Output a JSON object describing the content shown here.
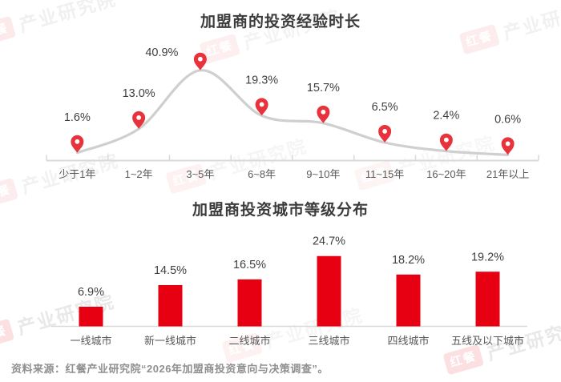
{
  "watermark": {
    "logo": "红餐",
    "name": "产业研究院"
  },
  "chart_data": [
    {
      "type": "line",
      "title": "加盟商的投资经验时长",
      "categories": [
        "少于1年",
        "1~2年",
        "3~5年",
        "6~8年",
        "9~10年",
        "11~15年",
        "16~20年",
        "21年以上"
      ],
      "values": [
        1.6,
        13.0,
        40.9,
        19.3,
        15.7,
        6.5,
        2.4,
        0.6
      ],
      "value_labels": [
        "1.6%",
        "13.0%",
        "40.9%",
        "19.3%",
        "15.7%",
        "6.5%",
        "2.4%",
        "0.6%"
      ],
      "unit": "%",
      "ylim": [
        0,
        45
      ],
      "grid": false,
      "legend": null,
      "marker": "map-pin",
      "colors": {
        "line": "#cfcfcf",
        "marker": "#e8333d",
        "marker_hole": "#ffffff",
        "axis": "#d9d9d9",
        "value_label": "#3f3f3f",
        "category_label": "#595959"
      }
    },
    {
      "type": "bar",
      "title": "加盟商投资城市等级分布",
      "categories": [
        "一线城市",
        "新一线城市",
        "二线城市",
        "三线城市",
        "四线城市",
        "五线及以下城市"
      ],
      "values": [
        6.9,
        14.5,
        16.5,
        24.7,
        18.2,
        19.2
      ],
      "value_labels": [
        "6.9%",
        "14.5%",
        "16.5%",
        "24.7%",
        "18.2%",
        "19.2%"
      ],
      "unit": "%",
      "ylim": [
        0,
        28
      ],
      "grid": false,
      "legend": null,
      "colors": {
        "bar": "#e60012",
        "axis": "#d9d9d9",
        "value_label": "#3f3f3f",
        "category_label": "#595959"
      }
    }
  ],
  "source": {
    "text": "资料来源：红餐产业研究院“2026年加盟商投资意向与决策调查”。"
  },
  "theme": {
    "accent": "#e60012",
    "title_color": "#3b3b3b"
  }
}
